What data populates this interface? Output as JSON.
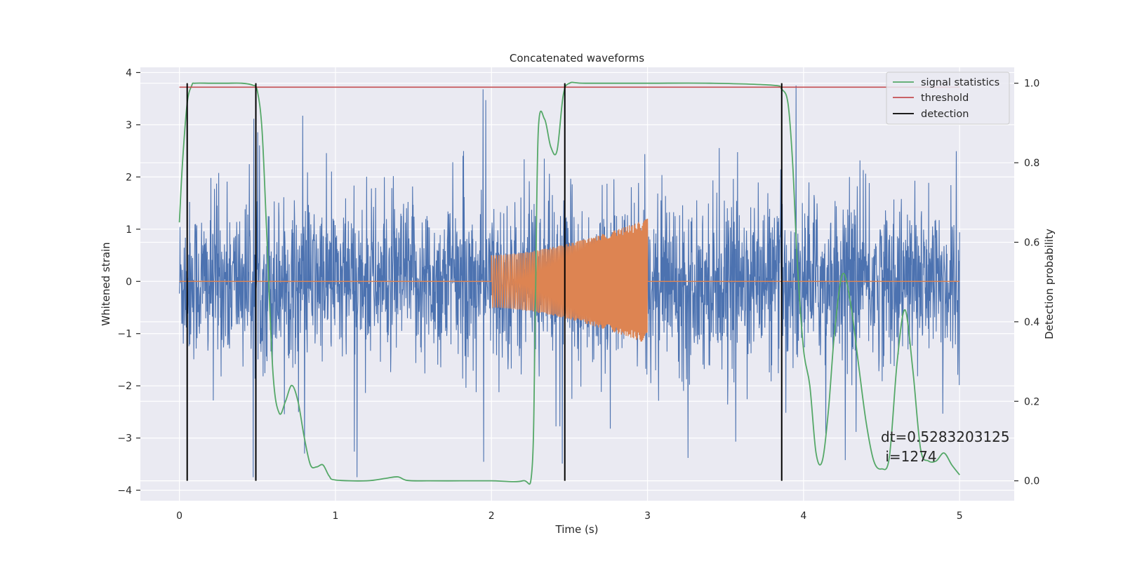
{
  "chart_data": {
    "type": "line",
    "title": "Concatenated waveforms",
    "xlabel": "Time (s)",
    "ylabel": "Whitened strain",
    "ylabel_right": "Detection probability",
    "xlim": [
      -0.25,
      5.35
    ],
    "ylim": [
      -4.2,
      4.1
    ],
    "ylim_right": [
      -0.05,
      1.04
    ],
    "x_ticks": [
      0,
      1,
      2,
      3,
      4,
      5
    ],
    "y_ticks": [
      -4,
      -3,
      -2,
      -1,
      0,
      1,
      2,
      3,
      4
    ],
    "y_ticks_right": [
      0.0,
      0.2,
      0.4,
      0.6,
      0.8,
      1.0
    ],
    "y_tick_labels_right": [
      "0.0",
      "0.2",
      "0.4",
      "0.6",
      "0.8",
      "1.0"
    ],
    "grid": true,
    "legend_position": "top-right",
    "legend": [
      "signal statistics",
      "threshold",
      "detection"
    ],
    "series": [
      {
        "name": "whitened strain (noise)",
        "axis": "left",
        "color": "#4c72b0",
        "description": "dense noise trace from t=0 to t=5 s, amplitude mostly within ±2, peaks near +3.7 and -3.8",
        "x_range": [
          0,
          5
        ],
        "amplitude_typical": 2.0,
        "amplitude_max": 3.75
      },
      {
        "name": "injected waveform",
        "axis": "left",
        "color": "#dd8452",
        "description": "zero outside 2-3 s; chirp from t=2 to t=3 s with amplitude rising from about 0.5 to about 1.2",
        "chirp_range": [
          2.0,
          3.0
        ],
        "amplitude_start": 0.5,
        "amplitude_end": 1.2
      },
      {
        "name": "signal statistics",
        "axis": "right",
        "color": "#55a868",
        "x": [
          0.0,
          0.02,
          0.05,
          0.08,
          0.1,
          0.2,
          0.3,
          0.4,
          0.47,
          0.5,
          0.53,
          0.56,
          0.6,
          0.64,
          0.68,
          0.72,
          0.76,
          0.8,
          0.84,
          0.88,
          0.92,
          0.96,
          1.0,
          1.2,
          1.32,
          1.4,
          1.46,
          1.6,
          1.8,
          2.0,
          2.2,
          2.26,
          2.28,
          2.3,
          2.34,
          2.38,
          2.42,
          2.46,
          2.5,
          2.6,
          3.0,
          3.4,
          3.8,
          3.86,
          3.9,
          3.93,
          3.96,
          4.0,
          4.04,
          4.08,
          4.12,
          4.16,
          4.2,
          4.25,
          4.3,
          4.35,
          4.4,
          4.45,
          4.5,
          4.55,
          4.6,
          4.65,
          4.7,
          4.75,
          4.8,
          4.85,
          4.9,
          4.95,
          5.0
        ],
        "values": [
          0.65,
          0.8,
          0.95,
          0.995,
          1.0,
          1.0,
          1.0,
          1.0,
          0.995,
          0.98,
          0.88,
          0.62,
          0.27,
          0.17,
          0.2,
          0.24,
          0.2,
          0.11,
          0.04,
          0.035,
          0.04,
          0.012,
          0.002,
          0.0,
          0.006,
          0.01,
          0.001,
          0.0,
          0.0,
          0.0,
          0.0,
          0.03,
          0.4,
          0.88,
          0.91,
          0.84,
          0.83,
          0.97,
          1.0,
          1.0,
          1.0,
          1.0,
          0.995,
          0.985,
          0.95,
          0.8,
          0.55,
          0.33,
          0.24,
          0.07,
          0.05,
          0.18,
          0.38,
          0.52,
          0.45,
          0.3,
          0.15,
          0.05,
          0.03,
          0.06,
          0.3,
          0.43,
          0.28,
          0.08,
          0.05,
          0.05,
          0.07,
          0.04,
          0.015
        ]
      },
      {
        "name": "threshold",
        "axis": "right",
        "color": "#c44e52",
        "x": [
          0.0,
          5.0
        ],
        "values": [
          0.99,
          0.99
        ]
      },
      {
        "name": "detection",
        "axis": "right",
        "color": "#000000",
        "type": "vlines",
        "x": [
          0.05,
          0.49,
          2.47,
          3.86
        ],
        "y_range": [
          0.0,
          1.0
        ]
      }
    ],
    "annotations": [
      "dt=0.5283203125",
      " i=1274"
    ]
  },
  "colors": {
    "background": "#eaeaf2",
    "grid": "#ffffff",
    "text": "#262626"
  }
}
